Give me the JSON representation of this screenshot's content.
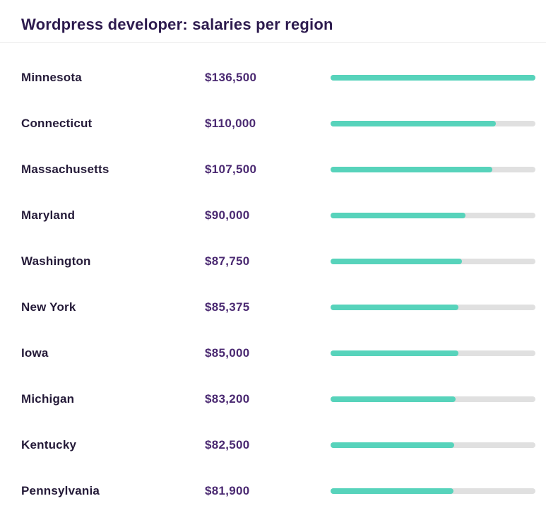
{
  "header": {
    "title": "Wordpress developer: salaries per region"
  },
  "chart_data": {
    "type": "bar",
    "orientation": "horizontal",
    "title": "Wordpress developer: salaries per region",
    "categories": [
      "Minnesota",
      "Connecticut",
      "Massachusetts",
      "Maryland",
      "Washington",
      "New York",
      "Iowa",
      "Michigan",
      "Kentucky",
      "Pennsylvania"
    ],
    "values": [
      136500,
      110000,
      107500,
      90000,
      87750,
      85375,
      85000,
      83200,
      82500,
      81900
    ],
    "value_labels": [
      "$136,500",
      "$110,000",
      "$107,500",
      "$90,000",
      "$87,750",
      "$85,375",
      "$85,000",
      "$83,200",
      "$82,500",
      "$81,900"
    ],
    "max_value": 136500,
    "xlim": [
      0,
      136500
    ],
    "grid": false,
    "legend": false,
    "colors": {
      "bar": "#57d3bb",
      "track": "#e0e0e0",
      "title": "#2d1b4e",
      "category_label": "#241a38",
      "value_label": "#4b2a72",
      "divider": "#ededed",
      "background": "#ffffff"
    }
  }
}
